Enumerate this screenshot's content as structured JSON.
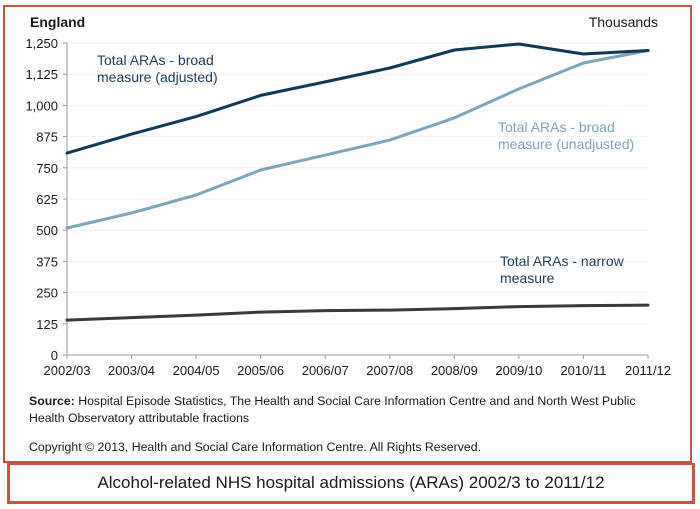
{
  "chart_data": {
    "type": "line",
    "title": "England",
    "units_label": "Thousands",
    "xlabel": "",
    "ylabel": "",
    "categories": [
      "2002/03",
      "2003/04",
      "2004/05",
      "2005/06",
      "2006/07",
      "2007/08",
      "2008/09",
      "2009/10",
      "2010/11",
      "2011/12"
    ],
    "ylim": [
      0,
      1250
    ],
    "yticks": [
      0,
      125,
      250,
      375,
      500,
      625,
      750,
      875,
      1000,
      1125,
      1250
    ],
    "ytick_labels": [
      "0",
      "125",
      "250",
      "375",
      "500",
      "625",
      "750",
      "875",
      "1,000",
      "1,125",
      "1,250"
    ],
    "grid": true,
    "legend": "inline annotations",
    "series": [
      {
        "name": "Total ARAs - broad measure (adjusted)",
        "label_lines": [
          "Total ARAs - broad",
          "measure (adjusted)"
        ],
        "color": "#0e3a5a",
        "label_color": "#1e3c5a",
        "values": [
          809,
          885,
          955,
          1040,
          1094,
          1150,
          1222,
          1246,
          1206,
          1220
        ]
      },
      {
        "name": "Total ARAs - broad measure (unadjusted)",
        "label_lines": [
          "Total ARAs - broad",
          "measure (unadjusted)"
        ],
        "color": "#7fa4bb",
        "label_color": "#7fa4bb",
        "values": [
          509,
          569,
          641,
          741,
          801,
          861,
          950,
          1066,
          1170,
          1220
        ]
      },
      {
        "name": "Total ARAs - narrow measure",
        "label_lines": [
          "Total ARAs - narrow",
          "measure"
        ],
        "color": "#3a3a3a",
        "label_color": "#1e3c5a",
        "values": [
          140,
          150,
          160,
          172,
          178,
          180,
          186,
          194,
          198,
          200
        ]
      }
    ]
  },
  "footer": {
    "source_label": "Source:",
    "source_text": " Hospital Episode Statistics, The Health and Social Care Information Centre and and North West Public Health Observatory attributable fractions",
    "copyright": "Copyright © 2013, Health and Social Care Information Centre. All Rights Reserved."
  },
  "caption": "Alcohol-related NHS hospital admissions (ARAs) 2002/3 to 2011/12"
}
